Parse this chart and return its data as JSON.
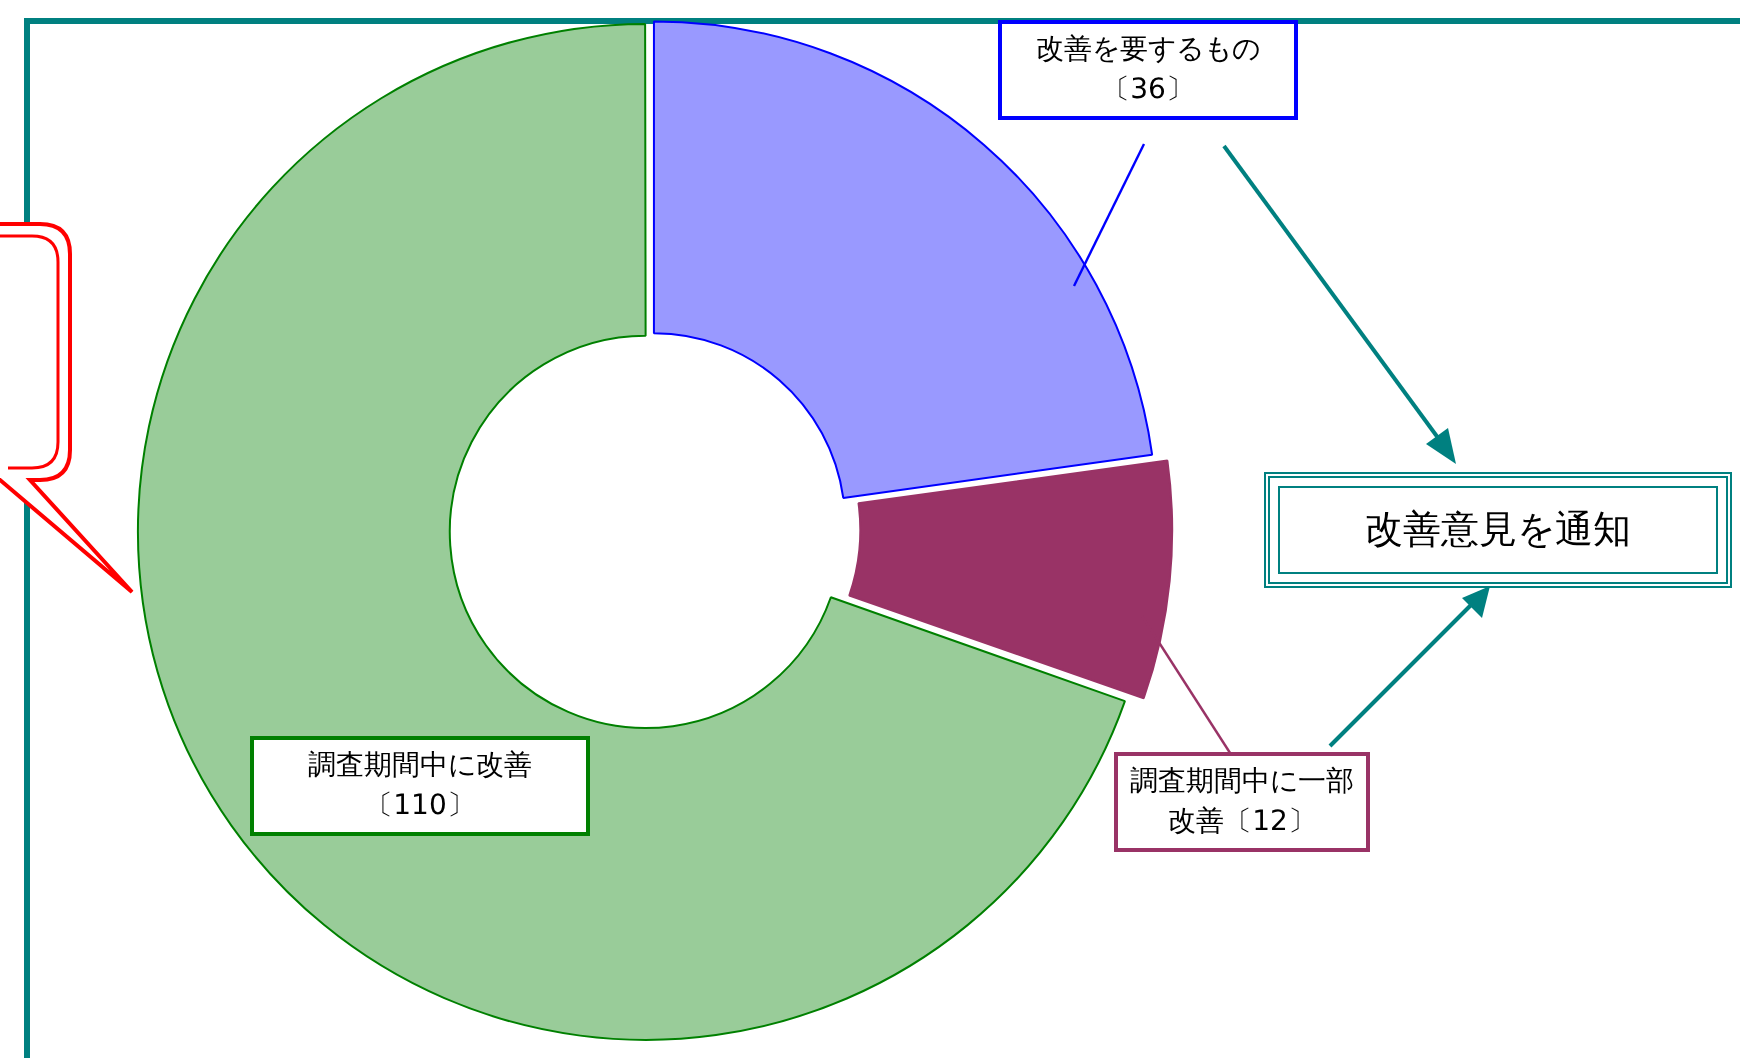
{
  "chart_data": {
    "type": "donut",
    "categories": [
      "改善を要するもの",
      "調査期間中に一部改善",
      "調査期間中に改善"
    ],
    "values": [
      36,
      12,
      110
    ],
    "value_labels": [
      "〔36〕",
      "〔12〕",
      "〔110〕"
    ],
    "colors": [
      "#9999ff",
      "#993366",
      "#99cc99"
    ],
    "annotations": [
      "改善意見を通知"
    ],
    "legend": false
  }
}
